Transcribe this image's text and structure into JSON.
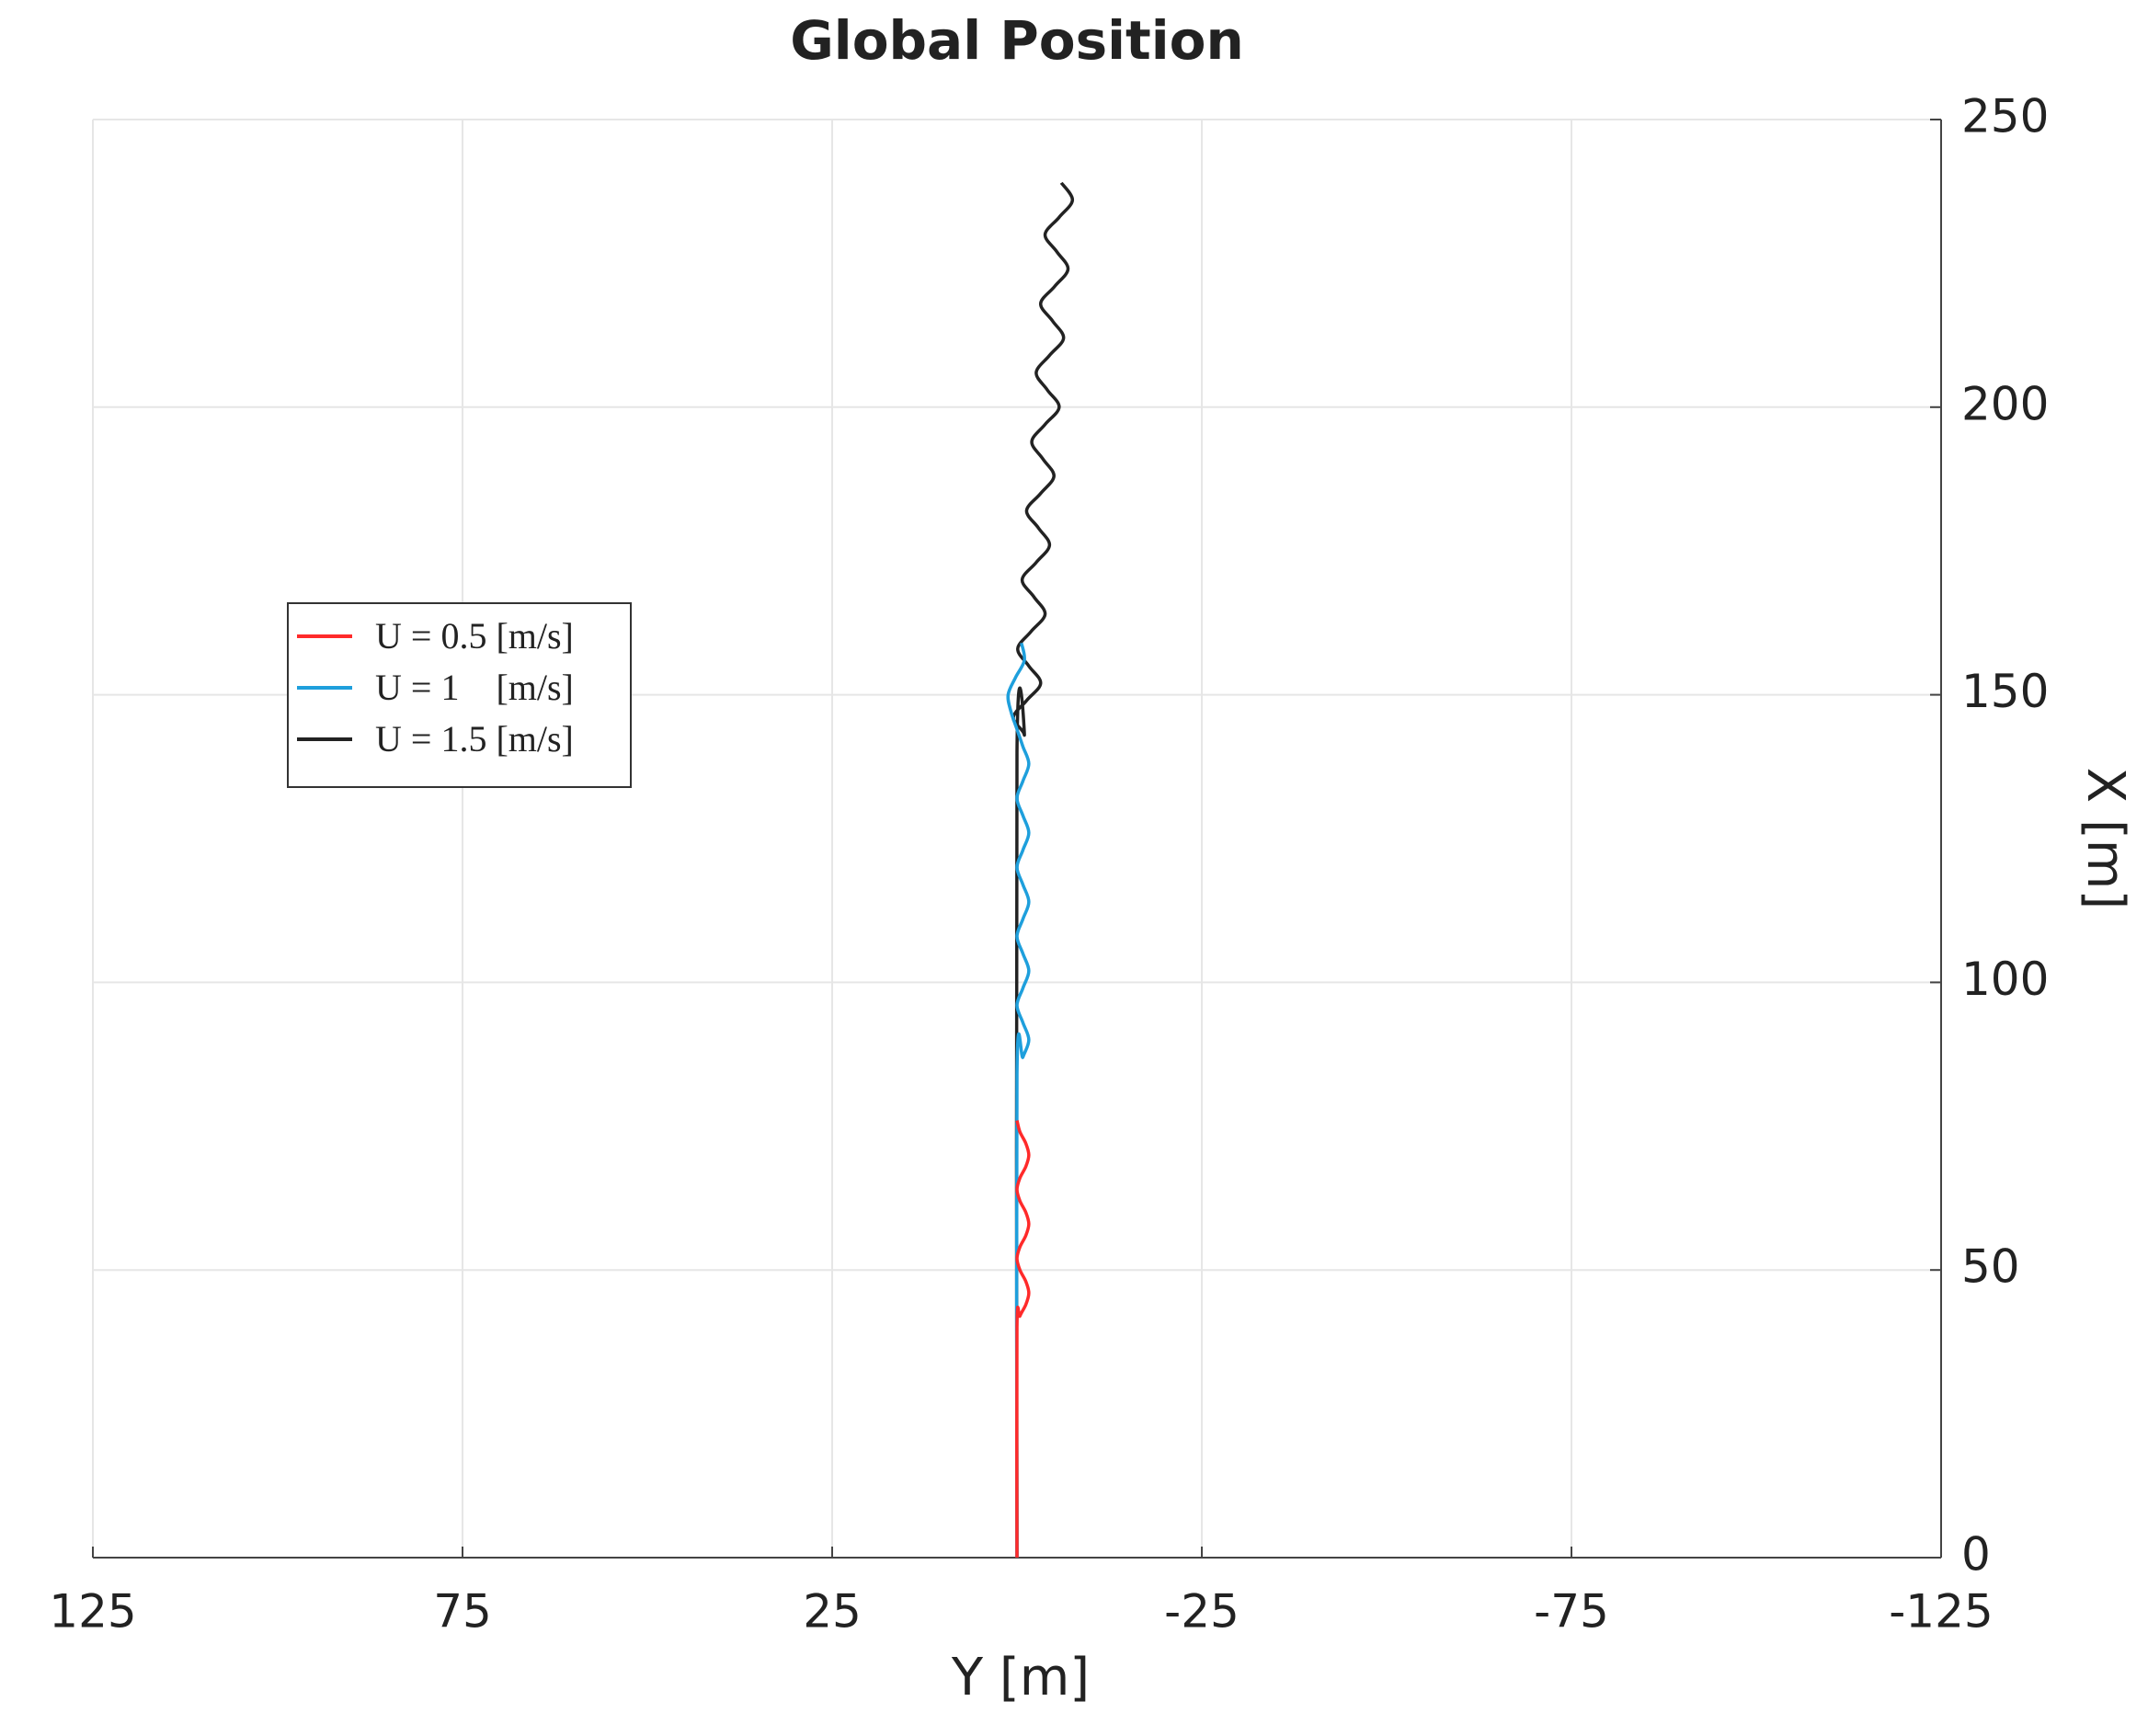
{
  "chart_data": {
    "type": "line",
    "title": "Global Position",
    "x_label": "Y  [m]",
    "y_label": "X [m]",
    "xlim": [
      125,
      -125
    ],
    "xticks": [
      125,
      75,
      25,
      -25,
      -75,
      -125
    ],
    "ylim": [
      0,
      250
    ],
    "yticks": [
      0,
      50,
      100,
      150,
      200,
      250
    ],
    "grid": true,
    "y_axis_side": "right",
    "legend": "left",
    "series": [
      {
        "name": "U = 0.5 [m/s]",
        "color": "#ff2a2a",
        "x": [
          0,
          0,
          -0.4,
          -1.2,
          -1.6,
          -1.2,
          -0.4,
          0,
          -0.4,
          -1.2,
          -1.6,
          -1.2,
          -0.4,
          0,
          -0.4,
          -1.2,
          -1.6,
          -1.2,
          -0.4,
          0
        ],
        "values": [
          0,
          40,
          42,
          44,
          46,
          48,
          50,
          52,
          54,
          56,
          58,
          60,
          62,
          64,
          66,
          68,
          70,
          72,
          74,
          76
        ]
      },
      {
        "name": "U = 1    [m/s]",
        "color": "#1e9fdc",
        "x": [
          0,
          0,
          -0.8,
          -1.6,
          -0.8,
          0,
          -0.8,
          -1.6,
          -0.8,
          0,
          -0.8,
          -1.6,
          -0.8,
          0,
          -0.8,
          -1.6,
          -0.8,
          0,
          -0.8,
          -1.6,
          -0.8,
          0,
          0.8,
          1.2,
          0.2,
          -1.0,
          -0.6
        ],
        "values": [
          0,
          84,
          87,
          90,
          93,
          96,
          99,
          102,
          105,
          108,
          111,
          114,
          117,
          120,
          123,
          126,
          129,
          132,
          135,
          138,
          141,
          144,
          147,
          150,
          153,
          156,
          159
        ]
      },
      {
        "name": "U = 1.5 [m/s]",
        "color": "#222222",
        "x": [
          0,
          0,
          -1.0,
          0.5,
          -1.3,
          -3.2,
          -1.6,
          -0.1,
          -1.9,
          -3.8,
          -2.3,
          -0.7,
          -2.6,
          -4.4,
          -2.9,
          -1.3,
          -3.2,
          -5.0,
          -3.5,
          -2.0,
          -3.8,
          -5.7,
          -4.1,
          -2.6,
          -4.4,
          -6.3,
          -4.8,
          -3.2,
          -5.1,
          -6.9,
          -5.4,
          -3.8,
          -5.7,
          -7.5,
          -6.0
        ],
        "values": [
          0,
          140,
          143,
          146,
          149,
          152,
          155,
          158,
          161,
          164,
          167,
          170,
          173,
          176,
          179,
          182,
          185,
          188,
          191,
          194,
          197,
          200,
          203,
          206,
          209,
          212,
          215,
          218,
          221,
          224,
          227,
          230,
          233,
          236,
          239
        ]
      }
    ]
  }
}
